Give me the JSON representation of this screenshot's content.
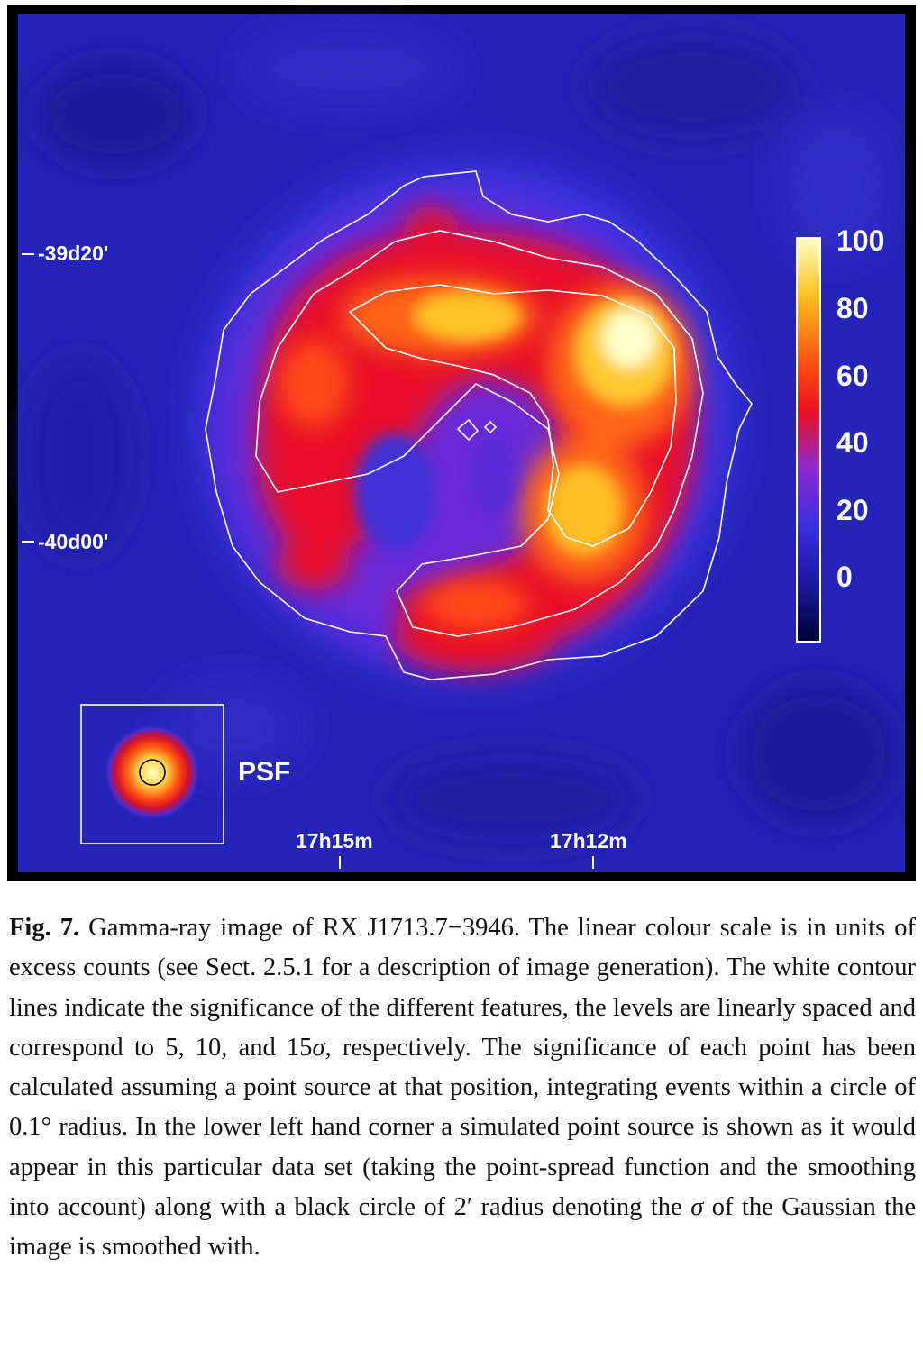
{
  "figure": {
    "dec_labels": [
      "-39d20'",
      "-40d00'"
    ],
    "ra_labels": [
      "17h15m",
      "17h12m"
    ],
    "colorbar": {
      "ticks": [
        "100",
        "80",
        "60",
        "40",
        "20",
        "0"
      ],
      "colors": [
        "#000033",
        "#1a1aa0",
        "#3a2ee0",
        "#8a2ad0",
        "#ee1020",
        "#ff6010",
        "#ffc020",
        "#ffffc8"
      ]
    },
    "psf_label": "PSF"
  },
  "caption": {
    "label": "Fig. 7.",
    "part1": " Gamma-ray image of RX J1713.7−3946. The linear colour scale is in units of excess counts (see Sect. 2.5.1 for a description of image generation). The white contour lines indicate the significance of the different features, the levels are linearly spaced and correspond to 5, 10, and 15",
    "sigma1": "σ",
    "part2": ", respectively. The significance of each point has been calculated assuming a point source at that position, integrating events within a circle of 0.1° radius. In the lower left hand corner a simulated point source is shown as it would appear in this particular data set (taking the point-spread function and the smoothing into account) along with a black circle of 2′ radius denoting the ",
    "sigma2": "σ",
    "part3": " of the Gaussian the image is smoothed with."
  }
}
